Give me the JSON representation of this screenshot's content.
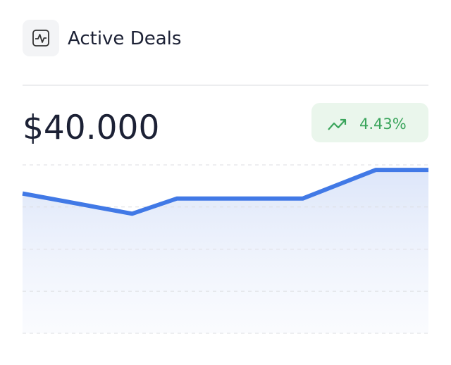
{
  "header": {
    "title": "Active Deals"
  },
  "summary": {
    "amount": "$40.000",
    "change": "4.43%"
  },
  "chart_data": {
    "type": "area",
    "x": [
      0,
      27,
      38,
      69,
      87,
      100
    ],
    "values": [
      83,
      71,
      80,
      80,
      97,
      97
    ],
    "color": "#4179e6",
    "xlim": [
      0,
      100
    ],
    "ylim": [
      0,
      100
    ],
    "yticks": [
      0,
      25,
      50,
      75,
      100
    ],
    "grid": true
  }
}
